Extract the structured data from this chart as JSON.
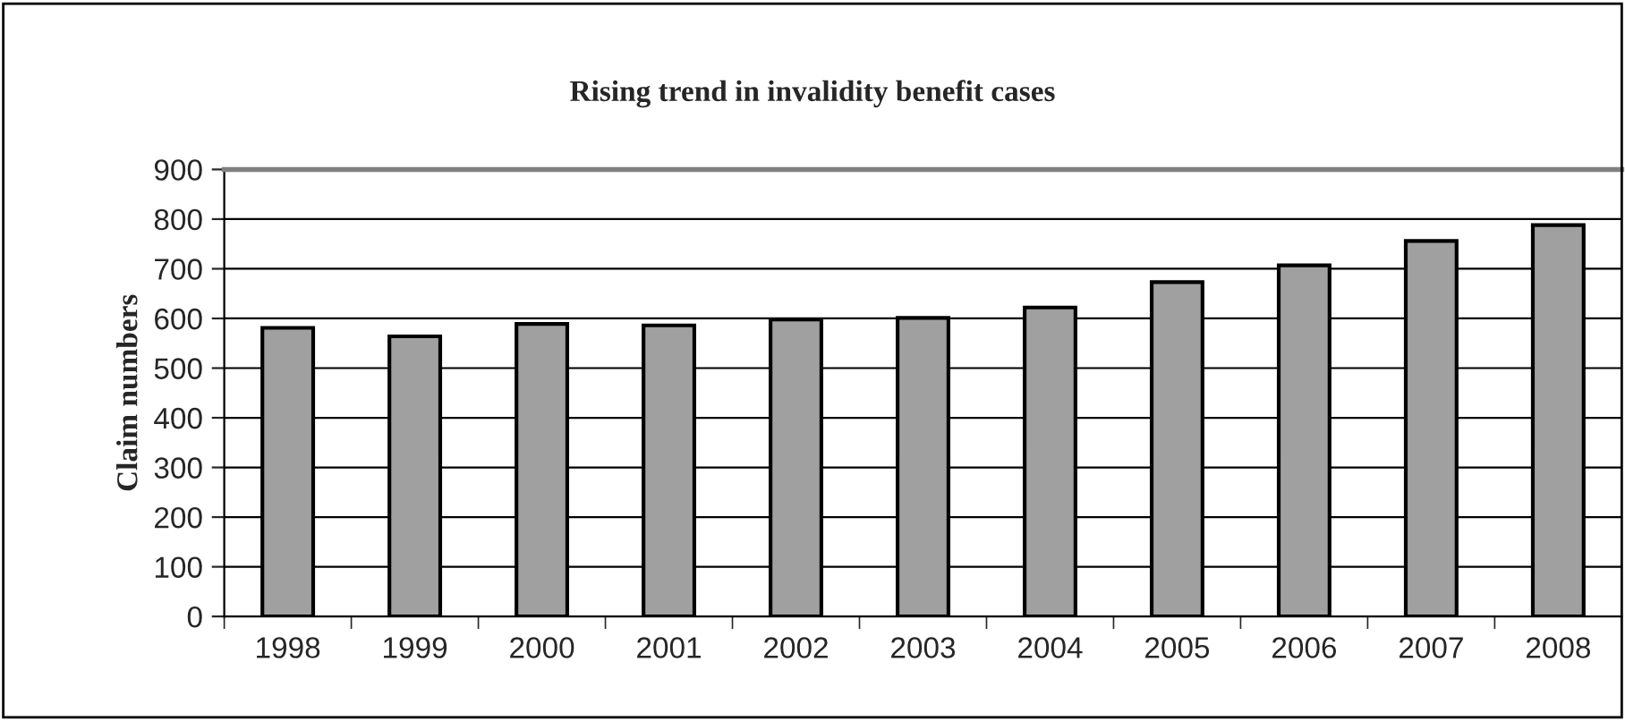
{
  "chart_data": {
    "type": "bar",
    "title": "Rising trend in invalidity benefit cases",
    "ylabel": "Claim numbers",
    "categories": [
      "1998",
      "1999",
      "2000",
      "2001",
      "2002",
      "2003",
      "2004",
      "2005",
      "2006",
      "2007",
      "2008"
    ],
    "values": [
      581,
      564,
      589,
      586,
      598,
      601,
      622,
      673,
      707,
      756,
      788
    ],
    "color": "#a0a0a0",
    "ylim": [
      0,
      900
    ],
    "yticks": [
      0,
      100,
      200,
      300,
      400,
      500,
      600,
      700,
      800,
      900
    ],
    "grid": "y",
    "legend": false
  }
}
